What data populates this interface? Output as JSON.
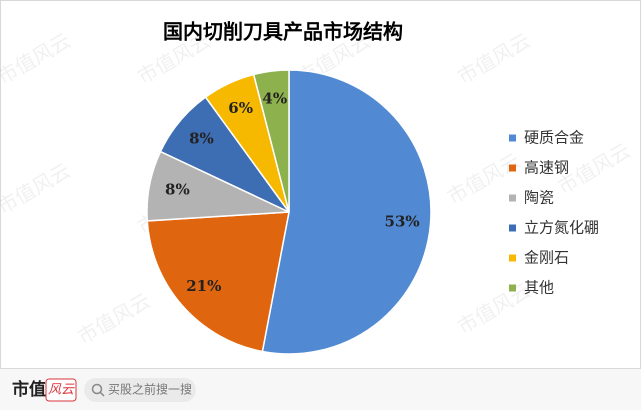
{
  "chart_data": {
    "type": "pie",
    "title": "国内切削刀具产品市场结构",
    "categories": [
      "硬质合金",
      "高速钢",
      "陶瓷",
      "立方氮化硼",
      "金刚石",
      "其他"
    ],
    "values": [
      53,
      21,
      8,
      8,
      6,
      4
    ],
    "value_labels": [
      "53%",
      "21%",
      "8%",
      "8%",
      "6%",
      "4%"
    ],
    "colors": [
      "#5189d3",
      "#e0650f",
      "#b3b3b3",
      "#3d6db2",
      "#f7b900",
      "#8db14c"
    ],
    "legend": "right"
  },
  "watermark": "市值风云",
  "footer": {
    "brand_left": "市值",
    "brand_right": "风云",
    "search_placeholder": "买股之前搜一搜"
  }
}
